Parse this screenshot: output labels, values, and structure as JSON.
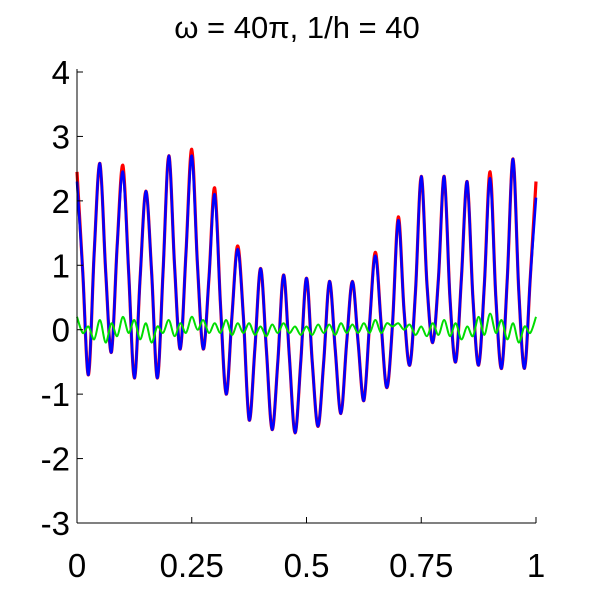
{
  "chart_data": {
    "type": "line",
    "title": "ω = 40π, 1/h = 40",
    "xlabel": "",
    "ylabel": "",
    "xlim": [
      0,
      1
    ],
    "ylim": [
      -3,
      4
    ],
    "xticks": [
      0,
      0.25,
      0.5,
      0.75,
      1
    ],
    "xtick_labels": [
      "0",
      "0.25",
      "0.5",
      "0.75",
      "1"
    ],
    "yticks": [
      -3,
      -2,
      -1,
      0,
      1,
      2,
      3,
      4
    ],
    "ytick_labels": [
      "-3",
      "-2",
      "-1",
      "0",
      "1",
      "2",
      "3",
      "4"
    ],
    "grid": false,
    "legend": "none",
    "x": [
      0,
      0.0125,
      0.025,
      0.0375,
      0.05,
      0.0625,
      0.075,
      0.0875,
      0.1,
      0.1125,
      0.125,
      0.1375,
      0.15,
      0.1625,
      0.175,
      0.1875,
      0.2,
      0.2125,
      0.225,
      0.2375,
      0.25,
      0.2625,
      0.275,
      0.2875,
      0.3,
      0.3125,
      0.325,
      0.3375,
      0.35,
      0.3625,
      0.375,
      0.3875,
      0.4,
      0.4125,
      0.425,
      0.4375,
      0.45,
      0.4625,
      0.475,
      0.4875,
      0.5,
      0.5125,
      0.525,
      0.5375,
      0.55,
      0.5625,
      0.575,
      0.5875,
      0.6,
      0.6125,
      0.625,
      0.6375,
      0.65,
      0.6625,
      0.675,
      0.6875,
      0.7,
      0.7125,
      0.725,
      0.7375,
      0.75,
      0.7625,
      0.775,
      0.7875,
      0.8,
      0.8125,
      0.825,
      0.8375,
      0.85,
      0.8625,
      0.875,
      0.8875,
      0.9,
      0.9125,
      0.925,
      0.9375,
      0.95,
      0.9625,
      0.975,
      0.9875,
      1
    ],
    "series": [
      {
        "color": "#ff0000",
        "values": [
          2.45,
          0.9,
          -0.7,
          1.2,
          2.58,
          0.9,
          -0.35,
          1.3,
          2.55,
          0.9,
          -0.75,
          0.8,
          2.15,
          0.9,
          -0.75,
          0.9,
          2.7,
          1.0,
          -0.3,
          1.2,
          2.8,
          1.0,
          -0.3,
          0.8,
          2.2,
          0.4,
          -1.0,
          0.2,
          1.3,
          0.2,
          -1.4,
          -0.3,
          0.95,
          -0.3,
          -1.55,
          -0.5,
          0.85,
          -0.4,
          -1.6,
          -0.5,
          0.8,
          -0.5,
          -1.5,
          -0.5,
          0.75,
          -0.3,
          -1.3,
          -0.2,
          0.75,
          -0.2,
          -1.1,
          0.1,
          1.2,
          0.1,
          -0.9,
          0.1,
          1.75,
          0.3,
          -0.55,
          0.6,
          2.38,
          0.7,
          -0.2,
          0.8,
          2.38,
          0.5,
          -0.5,
          0.8,
          2.3,
          0.5,
          -0.55,
          0.7,
          2.45,
          0.5,
          -0.6,
          0.8,
          2.65,
          0.6,
          -0.6,
          0.8,
          2.3
        ]
      },
      {
        "color": "#0000ff",
        "values": [
          2.3,
          0.9,
          -0.7,
          1.2,
          2.58,
          0.9,
          -0.35,
          1.3,
          2.45,
          0.9,
          -0.75,
          0.8,
          2.15,
          0.9,
          -0.75,
          0.9,
          2.7,
          1.0,
          -0.3,
          1.2,
          2.7,
          1.0,
          -0.3,
          0.8,
          2.1,
          0.4,
          -1.0,
          0.2,
          1.25,
          0.2,
          -1.4,
          -0.3,
          0.95,
          -0.3,
          -1.55,
          -0.5,
          0.85,
          -0.4,
          -1.6,
          -0.5,
          0.8,
          -0.5,
          -1.5,
          -0.5,
          0.75,
          -0.3,
          -1.3,
          -0.2,
          0.75,
          -0.2,
          -1.1,
          0.1,
          1.15,
          0.1,
          -0.9,
          0.1,
          1.7,
          0.3,
          -0.55,
          0.6,
          2.38,
          0.7,
          -0.2,
          0.8,
          2.38,
          0.5,
          -0.5,
          0.8,
          2.3,
          0.5,
          -0.55,
          0.7,
          2.35,
          0.5,
          -0.6,
          0.8,
          2.65,
          0.6,
          -0.6,
          0.8,
          2.05
        ]
      },
      {
        "color": "#00dd00",
        "values": [
          0.2,
          -0.05,
          0.05,
          -0.15,
          0.15,
          -0.2,
          0.1,
          -0.1,
          0.2,
          -0.05,
          0.15,
          -0.15,
          0.1,
          -0.2,
          0.05,
          -0.05,
          0.15,
          -0.1,
          0.1,
          -0.05,
          0.2,
          0.0,
          0.15,
          -0.05,
          0.1,
          -0.05,
          0.15,
          -0.08,
          0.1,
          -0.05,
          0.1,
          -0.08,
          0.05,
          -0.1,
          0.08,
          -0.05,
          0.1,
          -0.05,
          0.05,
          -0.08,
          0.05,
          -0.08,
          0.08,
          -0.05,
          0.08,
          -0.08,
          0.1,
          -0.05,
          0.08,
          -0.05,
          0.1,
          -0.05,
          0.15,
          -0.05,
          0.1,
          0.05,
          0.1,
          0.0,
          0.08,
          -0.08,
          0.05,
          -0.1,
          0.1,
          -0.08,
          0.15,
          -0.1,
          0.1,
          -0.15,
          0.05,
          -0.1,
          0.2,
          -0.08,
          0.25,
          -0.05,
          0.15,
          -0.15,
          0.1,
          -0.2,
          0.05,
          -0.05,
          0.2
        ]
      }
    ]
  }
}
